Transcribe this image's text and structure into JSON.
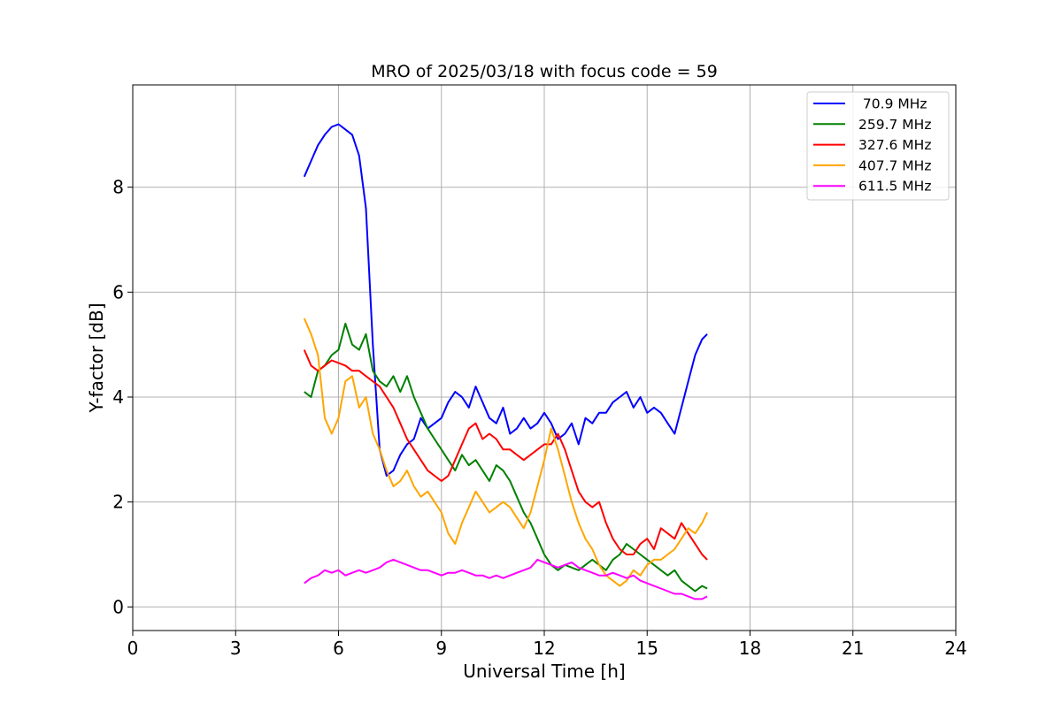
{
  "chart_data": {
    "type": "line",
    "title": "MRO of 2025/03/18 with focus code = 59",
    "xlabel": "Universal Time [h]",
    "ylabel": "Y-factor [dB]",
    "xlim": [
      0,
      24
    ],
    "ylim": [
      -0.45,
      9.95
    ],
    "xticks": [
      0,
      3,
      6,
      9,
      12,
      15,
      18,
      21,
      24
    ],
    "yticks": [
      0,
      2,
      4,
      6,
      8
    ],
    "grid": true,
    "legend_position": "top-right",
    "series": [
      {
        "name": " 70.9 MHz",
        "color": "#0000ff",
        "x": [
          5.0,
          5.2,
          5.4,
          5.6,
          5.8,
          6.0,
          6.2,
          6.4,
          6.6,
          6.8,
          7.0,
          7.2,
          7.4,
          7.6,
          7.8,
          8.0,
          8.2,
          8.4,
          8.6,
          8.8,
          9.0,
          9.2,
          9.4,
          9.6,
          9.8,
          10.0,
          10.2,
          10.4,
          10.6,
          10.8,
          11.0,
          11.2,
          11.4,
          11.6,
          11.8,
          12.0,
          12.2,
          12.4,
          12.6,
          12.8,
          13.0,
          13.2,
          13.4,
          13.6,
          13.8,
          14.0,
          14.2,
          14.4,
          14.6,
          14.8,
          15.0,
          15.2,
          15.4,
          15.6,
          15.8,
          16.0,
          16.2,
          16.4,
          16.6,
          16.75
        ],
        "y": [
          8.2,
          8.5,
          8.8,
          9.0,
          9.15,
          9.2,
          9.1,
          9.0,
          8.6,
          7.6,
          5.0,
          3.0,
          2.5,
          2.6,
          2.9,
          3.1,
          3.2,
          3.6,
          3.4,
          3.5,
          3.6,
          3.9,
          4.1,
          4.0,
          3.8,
          4.2,
          3.9,
          3.6,
          3.5,
          3.8,
          3.3,
          3.4,
          3.6,
          3.4,
          3.5,
          3.7,
          3.5,
          3.2,
          3.3,
          3.5,
          3.1,
          3.6,
          3.5,
          3.7,
          3.7,
          3.9,
          4.0,
          4.1,
          3.8,
          4.0,
          3.7,
          3.8,
          3.7,
          3.5,
          3.3,
          3.8,
          4.3,
          4.8,
          5.1,
          5.2
        ]
      },
      {
        "name": "259.7 MHz",
        "color": "#008000",
        "x": [
          5.0,
          5.2,
          5.4,
          5.6,
          5.8,
          6.0,
          6.2,
          6.4,
          6.6,
          6.8,
          7.0,
          7.2,
          7.4,
          7.6,
          7.8,
          8.0,
          8.2,
          8.4,
          8.6,
          8.8,
          9.0,
          9.2,
          9.4,
          9.6,
          9.8,
          10.0,
          10.2,
          10.4,
          10.6,
          10.8,
          11.0,
          11.2,
          11.4,
          11.6,
          11.8,
          12.0,
          12.2,
          12.4,
          12.6,
          12.8,
          13.0,
          13.2,
          13.4,
          13.6,
          13.8,
          14.0,
          14.2,
          14.4,
          14.6,
          14.8,
          15.0,
          15.2,
          15.4,
          15.6,
          15.8,
          16.0,
          16.2,
          16.4,
          16.6,
          16.75
        ],
        "y": [
          4.1,
          4.0,
          4.5,
          4.6,
          4.8,
          4.9,
          5.4,
          5.0,
          4.9,
          5.2,
          4.5,
          4.3,
          4.2,
          4.4,
          4.1,
          4.4,
          4.0,
          3.7,
          3.4,
          3.2,
          3.0,
          2.8,
          2.6,
          2.9,
          2.7,
          2.8,
          2.6,
          2.4,
          2.7,
          2.6,
          2.4,
          2.1,
          1.8,
          1.6,
          1.3,
          1.0,
          0.8,
          0.7,
          0.8,
          0.75,
          0.7,
          0.8,
          0.9,
          0.8,
          0.7,
          0.9,
          1.0,
          1.2,
          1.1,
          1.0,
          0.9,
          0.8,
          0.7,
          0.6,
          0.7,
          0.5,
          0.4,
          0.3,
          0.4,
          0.35
        ]
      },
      {
        "name": "327.6 MHz",
        "color": "#ff0000",
        "x": [
          5.0,
          5.2,
          5.4,
          5.6,
          5.8,
          6.0,
          6.2,
          6.4,
          6.6,
          6.8,
          7.0,
          7.2,
          7.4,
          7.6,
          7.8,
          8.0,
          8.2,
          8.4,
          8.6,
          8.8,
          9.0,
          9.2,
          9.4,
          9.6,
          9.8,
          10.0,
          10.2,
          10.4,
          10.6,
          10.8,
          11.0,
          11.2,
          11.4,
          11.6,
          11.8,
          12.0,
          12.2,
          12.4,
          12.6,
          12.8,
          13.0,
          13.2,
          13.4,
          13.6,
          13.8,
          14.0,
          14.2,
          14.4,
          14.6,
          14.8,
          15.0,
          15.2,
          15.4,
          15.6,
          15.8,
          16.0,
          16.2,
          16.4,
          16.6,
          16.75
        ],
        "y": [
          4.9,
          4.6,
          4.5,
          4.6,
          4.7,
          4.65,
          4.6,
          4.5,
          4.5,
          4.4,
          4.3,
          4.2,
          4.0,
          3.8,
          3.5,
          3.2,
          3.0,
          2.8,
          2.6,
          2.5,
          2.4,
          2.5,
          2.8,
          3.1,
          3.4,
          3.5,
          3.2,
          3.3,
          3.2,
          3.0,
          3.0,
          2.9,
          2.8,
          2.9,
          3.0,
          3.1,
          3.1,
          3.3,
          3.0,
          2.6,
          2.2,
          2.0,
          1.9,
          2.0,
          1.6,
          1.3,
          1.1,
          1.0,
          1.0,
          1.2,
          1.3,
          1.1,
          1.5,
          1.4,
          1.3,
          1.6,
          1.4,
          1.2,
          1.0,
          0.9
        ]
      },
      {
        "name": "407.7 MHz",
        "color": "#ffa500",
        "x": [
          5.0,
          5.2,
          5.4,
          5.6,
          5.8,
          6.0,
          6.2,
          6.4,
          6.6,
          6.8,
          7.0,
          7.2,
          7.4,
          7.6,
          7.8,
          8.0,
          8.2,
          8.4,
          8.6,
          8.8,
          9.0,
          9.2,
          9.4,
          9.6,
          9.8,
          10.0,
          10.2,
          10.4,
          10.6,
          10.8,
          11.0,
          11.2,
          11.4,
          11.6,
          11.8,
          12.0,
          12.2,
          12.4,
          12.6,
          12.8,
          13.0,
          13.2,
          13.4,
          13.6,
          13.8,
          14.0,
          14.2,
          14.4,
          14.6,
          14.8,
          15.0,
          15.2,
          15.4,
          15.6,
          15.8,
          16.0,
          16.2,
          16.4,
          16.6,
          16.75
        ],
        "y": [
          5.5,
          5.2,
          4.8,
          3.6,
          3.3,
          3.6,
          4.3,
          4.4,
          3.8,
          4.0,
          3.3,
          3.0,
          2.6,
          2.3,
          2.4,
          2.6,
          2.3,
          2.1,
          2.2,
          2.0,
          1.8,
          1.4,
          1.2,
          1.6,
          1.9,
          2.2,
          2.0,
          1.8,
          1.9,
          2.0,
          1.9,
          1.7,
          1.5,
          1.8,
          2.3,
          2.8,
          3.4,
          3.0,
          2.5,
          2.0,
          1.6,
          1.3,
          1.1,
          0.8,
          0.6,
          0.5,
          0.4,
          0.5,
          0.7,
          0.6,
          0.8,
          0.9,
          0.9,
          1.0,
          1.1,
          1.3,
          1.5,
          1.4,
          1.6,
          1.8
        ]
      },
      {
        "name": "611.5 MHz",
        "color": "#ff00ff",
        "x": [
          5.0,
          5.2,
          5.4,
          5.6,
          5.8,
          6.0,
          6.2,
          6.4,
          6.6,
          6.8,
          7.0,
          7.2,
          7.4,
          7.6,
          7.8,
          8.0,
          8.2,
          8.4,
          8.6,
          8.8,
          9.0,
          9.2,
          9.4,
          9.6,
          9.8,
          10.0,
          10.2,
          10.4,
          10.6,
          10.8,
          11.0,
          11.2,
          11.4,
          11.6,
          11.8,
          12.0,
          12.2,
          12.4,
          12.6,
          12.8,
          13.0,
          13.2,
          13.4,
          13.6,
          13.8,
          14.0,
          14.2,
          14.4,
          14.6,
          14.8,
          15.0,
          15.2,
          15.4,
          15.6,
          15.8,
          16.0,
          16.2,
          16.4,
          16.6,
          16.75
        ],
        "y": [
          0.45,
          0.55,
          0.6,
          0.7,
          0.65,
          0.7,
          0.6,
          0.65,
          0.7,
          0.65,
          0.7,
          0.75,
          0.85,
          0.9,
          0.85,
          0.8,
          0.75,
          0.7,
          0.7,
          0.65,
          0.6,
          0.65,
          0.65,
          0.7,
          0.65,
          0.6,
          0.6,
          0.55,
          0.6,
          0.55,
          0.6,
          0.65,
          0.7,
          0.75,
          0.9,
          0.85,
          0.8,
          0.75,
          0.8,
          0.85,
          0.75,
          0.7,
          0.65,
          0.6,
          0.6,
          0.65,
          0.6,
          0.55,
          0.6,
          0.5,
          0.45,
          0.4,
          0.35,
          0.3,
          0.25,
          0.25,
          0.2,
          0.15,
          0.15,
          0.2
        ]
      }
    ]
  }
}
